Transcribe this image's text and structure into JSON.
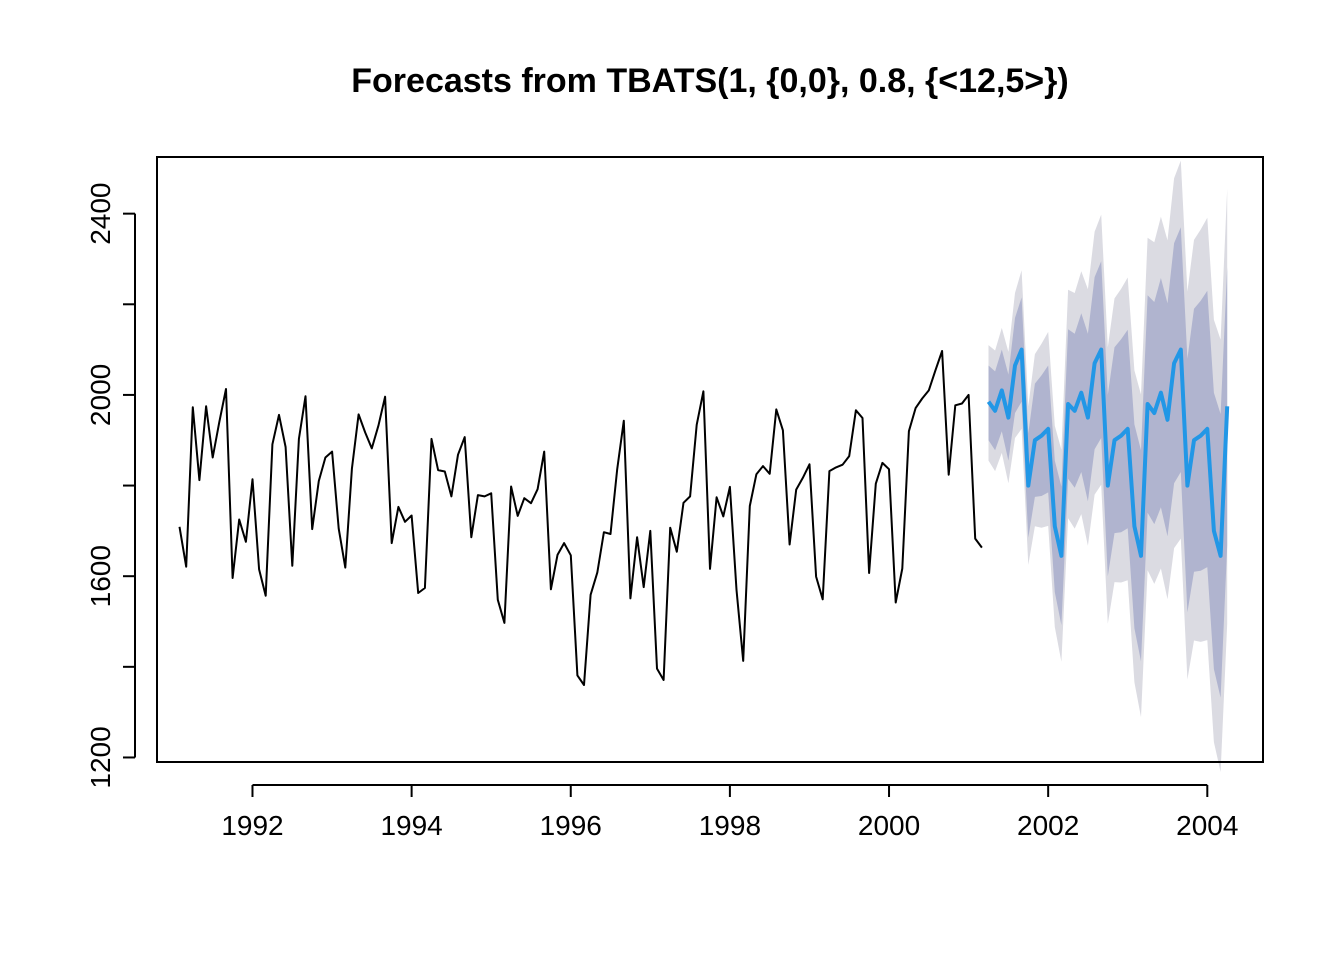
{
  "chart_data": {
    "type": "line",
    "title": "Forecasts from TBATS(1, {0,0}, 0.8, {<12,5>})",
    "xlabel": "",
    "ylabel": "",
    "xlim": [
      1990.8,
      2004.7
    ],
    "ylim": [
      1190,
      2525
    ],
    "x_ticks": [
      1992,
      1994,
      1996,
      1998,
      2000,
      2002,
      2004
    ],
    "y_ticks": [
      1200,
      1600,
      2000,
      2400
    ],
    "grid": false,
    "legend": "none",
    "colors": {
      "historical": "#000000",
      "forecast": "#2297E6",
      "interval_80": "#B0B4CF",
      "interval_95": "#DBDBE2"
    },
    "series": [
      {
        "start": 1991.083333,
        "step": 0.0833333,
        "values": [
          1709,
          1621,
          1973,
          1812,
          1975,
          1862,
          1940,
          2013,
          1596,
          1725,
          1676,
          1814,
          1615,
          1557,
          1891,
          1956,
          1885,
          1623,
          1903,
          1997,
          1704,
          1810,
          1862,
          1875,
          1705,
          1619,
          1837,
          1957,
          1917,
          1882,
          1933,
          1996,
          1673,
          1753,
          1720,
          1734,
          1563,
          1574,
          1903,
          1834,
          1831,
          1776,
          1868,
          1907,
          1686,
          1779,
          1776,
          1783,
          1548,
          1497,
          1798,
          1733,
          1772,
          1761,
          1792,
          1875,
          1571,
          1647,
          1673,
          1646,
          1381,
          1360,
          1559,
          1608,
          1697,
          1693,
          1836,
          1943,
          1551,
          1686,
          1576,
          1700,
          1396,
          1371,
          1707,
          1654,
          1762,
          1776,
          1934,
          2008,
          1616,
          1774,
          1732,
          1797,
          1570,
          1413,
          1755,
          1825,
          1843,
          1826,
          1968,
          1922,
          1670,
          1791,
          1817,
          1847,
          1599,
          1549,
          1832,
          1840,
          1846,
          1865,
          1966,
          1949,
          1607,
          1804,
          1850,
          1836,
          1542,
          1617,
          1920,
          1971,
          1992,
          2010,
          2054,
          2097,
          1824,
          1977,
          1981,
          2000,
          1683,
          1663
        ]
      },
      {
        "start": 2001.25,
        "step": 0.0833333,
        "values": [
          1985,
          1965,
          2010,
          1950,
          2065,
          2100,
          1800,
          1900,
          1910,
          1925,
          1710,
          1645,
          1980,
          1965,
          2005,
          1950,
          2070,
          2100,
          1800,
          1900,
          1910,
          1925,
          1710,
          1645,
          1980,
          1960,
          2005,
          1945,
          2070,
          2100,
          1800,
          1900,
          1910,
          1925,
          1700,
          1645,
          1975
        ],
        "lo80": [
          1900,
          1878,
          1920,
          1855,
          1960,
          1985,
          1685,
          1775,
          1777,
          1785,
          1565,
          1492,
          1815,
          1795,
          1830,
          1765,
          1880,
          1905,
          1600,
          1695,
          1697,
          1706,
          1485,
          1412,
          1740,
          1715,
          1752,
          1688,
          1805,
          1830,
          1520,
          1610,
          1612,
          1620,
          1395,
          1332,
          1668
        ],
        "hi80": [
          2065,
          2052,
          2100,
          2045,
          2170,
          2215,
          1915,
          2025,
          2043,
          2065,
          1855,
          1798,
          2145,
          2135,
          2180,
          2135,
          2260,
          2295,
          2000,
          2105,
          2123,
          2144,
          1935,
          1878,
          2220,
          2205,
          2258,
          2202,
          2335,
          2370,
          2080,
          2190,
          2208,
          2230,
          2005,
          1958,
          2282
        ],
        "lo95": [
          1855,
          1832,
          1872,
          1805,
          1905,
          1925,
          1625,
          1710,
          1707,
          1711,
          1488,
          1411,
          1728,
          1705,
          1737,
          1667,
          1780,
          1802,
          1495,
          1587,
          1586,
          1591,
          1366,
          1289,
          1613,
          1583,
          1617,
          1549,
          1662,
          1683,
          1372,
          1458,
          1455,
          1459,
          1234,
          1168,
          1495
        ],
        "hi95": [
          2110,
          2098,
          2148,
          2095,
          2225,
          2275,
          1975,
          2090,
          2113,
          2139,
          1932,
          1879,
          2232,
          2225,
          2273,
          2233,
          2360,
          2398,
          2105,
          2213,
          2234,
          2259,
          2054,
          2001,
          2347,
          2337,
          2393,
          2341,
          2478,
          2517,
          2228,
          2342,
          2365,
          2391,
          2166,
          2122,
          2455
        ]
      }
    ]
  }
}
